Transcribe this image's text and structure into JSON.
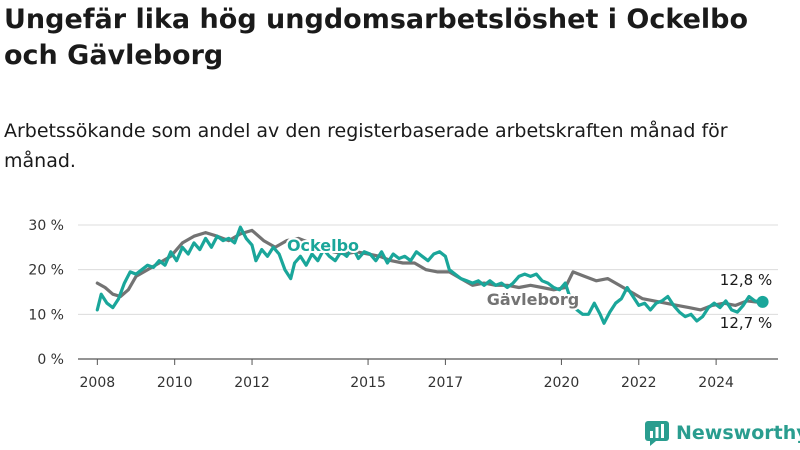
{
  "title": "Ungefär lika hög ungdomsarbetslöshet i Ockelbo och Gävleborg",
  "subtitle": "Arbetssökande som andel av den registerbaserade arbetskraften månad för månad.",
  "logo": {
    "text": "Newsworthy",
    "icon": "newsworthy-logo-icon",
    "color": "#2a9d8f"
  },
  "chart_data": {
    "type": "line",
    "ylim": [
      0,
      30
    ],
    "yticks": [
      0,
      10,
      20,
      30
    ],
    "ytick_labels": [
      "0 %",
      "10 %",
      "20 %",
      "30 %"
    ],
    "xlim": [
      2007.5,
      2025.6
    ],
    "xticks": [
      2008,
      2010,
      2012,
      2015,
      2017,
      2020,
      2022,
      2024
    ],
    "xtick_labels": [
      "2008",
      "2010",
      "2012",
      "2015",
      "2017",
      "2020",
      "2022",
      "2024"
    ],
    "grid": "horizontal",
    "series": [
      {
        "name": "Gävleborg",
        "color": "#737373",
        "end_label": "12,7 %",
        "points": [
          [
            2008.0,
            17
          ],
          [
            2008.2,
            16
          ],
          [
            2008.4,
            14.5
          ],
          [
            2008.6,
            14
          ],
          [
            2008.8,
            15.5
          ],
          [
            2009.0,
            18.5
          ],
          [
            2009.3,
            20
          ],
          [
            2009.6,
            21.5
          ],
          [
            2009.9,
            23
          ],
          [
            2010.2,
            26
          ],
          [
            2010.5,
            27.5
          ],
          [
            2010.8,
            28.3
          ],
          [
            2011.1,
            27.5
          ],
          [
            2011.4,
            26.5
          ],
          [
            2011.7,
            28
          ],
          [
            2012.0,
            28.8
          ],
          [
            2012.3,
            26.5
          ],
          [
            2012.6,
            25
          ],
          [
            2012.9,
            26.5
          ],
          [
            2013.2,
            27
          ],
          [
            2013.5,
            26
          ],
          [
            2013.8,
            25
          ],
          [
            2014.1,
            24
          ],
          [
            2014.4,
            23.5
          ],
          [
            2014.7,
            24
          ],
          [
            2015.0,
            23.5
          ],
          [
            2015.3,
            23
          ],
          [
            2015.6,
            22
          ],
          [
            2015.9,
            21.5
          ],
          [
            2016.2,
            21.5
          ],
          [
            2016.5,
            20
          ],
          [
            2016.8,
            19.5
          ],
          [
            2017.1,
            19.5
          ],
          [
            2017.4,
            18
          ],
          [
            2017.7,
            16.5
          ],
          [
            2018.0,
            17
          ],
          [
            2018.3,
            16.5
          ],
          [
            2018.6,
            16.5
          ],
          [
            2018.9,
            16
          ],
          [
            2019.2,
            16.5
          ],
          [
            2019.5,
            16
          ],
          [
            2019.8,
            15.5
          ],
          [
            2020.1,
            16
          ],
          [
            2020.3,
            19.5
          ],
          [
            2020.6,
            18.5
          ],
          [
            2020.9,
            17.5
          ],
          [
            2021.2,
            18
          ],
          [
            2021.5,
            16.5
          ],
          [
            2021.8,
            15
          ],
          [
            2022.1,
            13.5
          ],
          [
            2022.4,
            13
          ],
          [
            2022.7,
            12.5
          ],
          [
            2023.0,
            12
          ],
          [
            2023.3,
            11.5
          ],
          [
            2023.6,
            11
          ],
          [
            2023.9,
            12
          ],
          [
            2024.2,
            12.5
          ],
          [
            2024.5,
            12
          ],
          [
            2024.8,
            13
          ],
          [
            2025.1,
            12.7
          ]
        ]
      },
      {
        "name": "Ockelbo",
        "color": "#1aa69a",
        "end_label": "12,8 %",
        "points": [
          [
            2008.0,
            11
          ],
          [
            2008.1,
            14.5
          ],
          [
            2008.25,
            12.5
          ],
          [
            2008.4,
            11.5
          ],
          [
            2008.55,
            13.5
          ],
          [
            2008.7,
            17
          ],
          [
            2008.85,
            19.5
          ],
          [
            2009.0,
            19
          ],
          [
            2009.15,
            20
          ],
          [
            2009.3,
            21
          ],
          [
            2009.45,
            20.5
          ],
          [
            2009.6,
            22
          ],
          [
            2009.75,
            21
          ],
          [
            2009.9,
            24
          ],
          [
            2010.05,
            22
          ],
          [
            2010.2,
            25
          ],
          [
            2010.35,
            23.5
          ],
          [
            2010.5,
            26
          ],
          [
            2010.65,
            24.5
          ],
          [
            2010.8,
            27
          ],
          [
            2010.95,
            25
          ],
          [
            2011.1,
            27.5
          ],
          [
            2011.25,
            26.5
          ],
          [
            2011.4,
            27
          ],
          [
            2011.55,
            26
          ],
          [
            2011.7,
            29.5
          ],
          [
            2011.85,
            27
          ],
          [
            2012.0,
            25.5
          ],
          [
            2012.1,
            22
          ],
          [
            2012.25,
            24.5
          ],
          [
            2012.4,
            23
          ],
          [
            2012.55,
            25
          ],
          [
            2012.7,
            23.5
          ],
          [
            2012.85,
            20
          ],
          [
            2013.0,
            18
          ],
          [
            2013.1,
            21.5
          ],
          [
            2013.25,
            23
          ],
          [
            2013.4,
            21
          ],
          [
            2013.55,
            23.5
          ],
          [
            2013.7,
            22
          ],
          [
            2013.85,
            24.5
          ],
          [
            2014.0,
            23
          ],
          [
            2014.15,
            22
          ],
          [
            2014.3,
            24
          ],
          [
            2014.45,
            23
          ],
          [
            2014.6,
            25
          ],
          [
            2014.75,
            22.5
          ],
          [
            2014.9,
            24
          ],
          [
            2015.05,
            23.5
          ],
          [
            2015.2,
            22
          ],
          [
            2015.35,
            24
          ],
          [
            2015.5,
            21.5
          ],
          [
            2015.65,
            23.5
          ],
          [
            2015.8,
            22.5
          ],
          [
            2015.95,
            23
          ],
          [
            2016.1,
            22
          ],
          [
            2016.25,
            24
          ],
          [
            2016.4,
            23
          ],
          [
            2016.55,
            22
          ],
          [
            2016.7,
            23.5
          ],
          [
            2016.85,
            24
          ],
          [
            2017.0,
            23
          ],
          [
            2017.1,
            20
          ],
          [
            2017.25,
            19
          ],
          [
            2017.4,
            18
          ],
          [
            2017.55,
            17.5
          ],
          [
            2017.7,
            17
          ],
          [
            2017.85,
            17.5
          ],
          [
            2018.0,
            16.5
          ],
          [
            2018.15,
            17.5
          ],
          [
            2018.3,
            16.5
          ],
          [
            2018.45,
            17
          ],
          [
            2018.6,
            16
          ],
          [
            2018.75,
            17
          ],
          [
            2018.9,
            18.5
          ],
          [
            2019.05,
            19
          ],
          [
            2019.2,
            18.5
          ],
          [
            2019.35,
            19
          ],
          [
            2019.5,
            17.5
          ],
          [
            2019.65,
            17
          ],
          [
            2019.8,
            16
          ],
          [
            2019.95,
            15.5
          ],
          [
            2020.1,
            17
          ],
          [
            2020.25,
            13
          ],
          [
            2020.4,
            11
          ],
          [
            2020.55,
            10
          ],
          [
            2020.7,
            10
          ],
          [
            2020.85,
            12.5
          ],
          [
            2021.0,
            10
          ],
          [
            2021.1,
            8
          ],
          [
            2021.25,
            10.5
          ],
          [
            2021.4,
            12.5
          ],
          [
            2021.55,
            13.5
          ],
          [
            2021.7,
            16
          ],
          [
            2021.85,
            14
          ],
          [
            2022.0,
            12
          ],
          [
            2022.15,
            12.5
          ],
          [
            2022.3,
            11
          ],
          [
            2022.45,
            12.5
          ],
          [
            2022.6,
            13
          ],
          [
            2022.75,
            14
          ],
          [
            2022.9,
            12
          ],
          [
            2023.05,
            10.5
          ],
          [
            2023.2,
            9.5
          ],
          [
            2023.35,
            10
          ],
          [
            2023.5,
            8.5
          ],
          [
            2023.65,
            9.5
          ],
          [
            2023.8,
            11.5
          ],
          [
            2023.95,
            12.5
          ],
          [
            2024.1,
            11.5
          ],
          [
            2024.25,
            13
          ],
          [
            2024.4,
            11
          ],
          [
            2024.55,
            10.5
          ],
          [
            2024.7,
            12
          ],
          [
            2024.85,
            14
          ],
          [
            2025.0,
            13
          ],
          [
            2025.15,
            12.8
          ]
        ]
      }
    ],
    "annotations": [
      {
        "text": "Ockelbo",
        "series": "Ockelbo"
      },
      {
        "text": "Gävleborg",
        "series": "Gävleborg"
      }
    ]
  }
}
